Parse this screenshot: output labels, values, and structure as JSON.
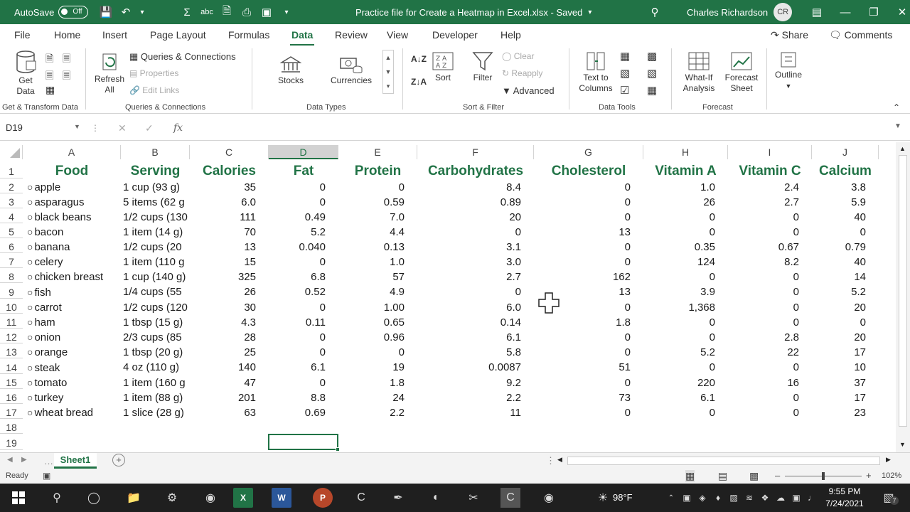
{
  "titlebar": {
    "autosave_label": "AutoSave",
    "autosave_state": "Off",
    "title": "Practice file for Create a Heatmap in Excel.xlsx  -  Saved",
    "user": "Charles Richardson",
    "initials": "CR"
  },
  "menu": {
    "tabs": [
      "File",
      "Home",
      "Insert",
      "Page Layout",
      "Formulas",
      "Data",
      "Review",
      "View",
      "Developer",
      "Help"
    ],
    "active": "Data",
    "share": "Share",
    "comments": "Comments"
  },
  "ribbon": {
    "get_data": "Get Data",
    "refresh_all": "Refresh All",
    "queries_connections": "Queries & Connections",
    "properties": "Properties",
    "edit_links": "Edit Links",
    "stocks": "Stocks",
    "currencies": "Currencies",
    "sort": "Sort",
    "filter": "Filter",
    "clear": "Clear",
    "reapply": "Reapply",
    "advanced": "Advanced",
    "text_to_columns": "Text to Columns",
    "what_if": "What-If Analysis",
    "forecast_sheet": "Forecast Sheet",
    "outline": "Outline",
    "groups": {
      "get_transform": "Get & Transform Data",
      "queries": "Queries & Connections",
      "data_types": "Data Types",
      "sort_filter": "Sort & Filter",
      "data_tools": "Data Tools",
      "forecast": "Forecast"
    }
  },
  "formula": {
    "name_box": "D19",
    "fx": "fx",
    "value": ""
  },
  "sheet": {
    "columns": [
      "A",
      "B",
      "C",
      "D",
      "E",
      "F",
      "G",
      "H",
      "I",
      "J"
    ],
    "selected_col": "D",
    "rows": [
      [
        "Food",
        "Serving",
        "Calories",
        "Fat",
        "Protein",
        "Carbohydrates",
        "Cholesterol",
        "Vitamin A",
        "Vitamin C",
        "Calcium"
      ],
      [
        "apple",
        "1 cup (93 g)",
        "35",
        "0",
        "0",
        "8.4",
        "0",
        "1.0",
        "2.4",
        "3.8"
      ],
      [
        "asparagus",
        "5 items (62 g",
        "6.0",
        "0",
        "0.59",
        "0.89",
        "0",
        "26",
        "2.7",
        "5.9"
      ],
      [
        "black beans",
        "1/2 cups (130",
        "111",
        "0.49",
        "7.0",
        "20",
        "0",
        "0",
        "0",
        "40"
      ],
      [
        "bacon",
        "1 item (14 g)",
        "70",
        "5.2",
        "4.4",
        "0",
        "13",
        "0",
        "0",
        "0"
      ],
      [
        "banana",
        "1/2 cups (20",
        "13",
        "0.040",
        "0.13",
        "3.1",
        "0",
        "0.35",
        "0.67",
        "0.79"
      ],
      [
        "celery",
        "1 item (110 g",
        "15",
        "0",
        "1.0",
        "3.0",
        "0",
        "124",
        "8.2",
        "40"
      ],
      [
        "chicken breast",
        "1 cup (140 g)",
        "325",
        "6.8",
        "57",
        "2.7",
        "162",
        "0",
        "0",
        "14"
      ],
      [
        "fish",
        "1/4 cups (55",
        "26",
        "0.52",
        "4.9",
        "0",
        "13",
        "3.9",
        "0",
        "5.2"
      ],
      [
        "carrot",
        "1/2 cups (120",
        "30",
        "0",
        "1.00",
        "6.0",
        "0",
        "1,368",
        "0",
        "20"
      ],
      [
        "ham",
        "1 tbsp (15 g)",
        "4.3",
        "0.11",
        "0.65",
        "0.14",
        "1.8",
        "0",
        "0",
        "0"
      ],
      [
        "onion",
        "2/3 cups (85",
        "28",
        "0",
        "0.96",
        "6.1",
        "0",
        "0",
        "2.8",
        "20"
      ],
      [
        "orange",
        "1 tbsp (20 g)",
        "25",
        "0",
        "0",
        "5.8",
        "0",
        "5.2",
        "22",
        "17"
      ],
      [
        "steak",
        "4 oz (110 g)",
        "140",
        "6.1",
        "19",
        "0.0087",
        "51",
        "0",
        "0",
        "10"
      ],
      [
        "tomato",
        "1 item (160 g",
        "47",
        "0",
        "1.8",
        "9.2",
        "0",
        "220",
        "16",
        "37"
      ],
      [
        "turkey",
        "1 item (88 g)",
        "201",
        "8.8",
        "24",
        "2.2",
        "73",
        "6.1",
        "0",
        "17"
      ],
      [
        "wheat bread",
        "1 slice (28 g)",
        "63",
        "0.69",
        "2.2",
        "11",
        "0",
        "0",
        "0",
        "23"
      ]
    ],
    "row_numbers": [
      "1",
      "2",
      "3",
      "4",
      "5",
      "6",
      "7",
      "8",
      "9",
      "10",
      "11",
      "12",
      "13",
      "14",
      "15",
      "16",
      "17",
      "18",
      "19"
    ]
  },
  "sheettabs": {
    "active": "Sheet1"
  },
  "status": {
    "ready": "Ready",
    "zoom": "102%"
  },
  "taskbar": {
    "weather": "98°F",
    "time": "9:55 PM",
    "date": "7/24/2021",
    "notifications": "7"
  }
}
